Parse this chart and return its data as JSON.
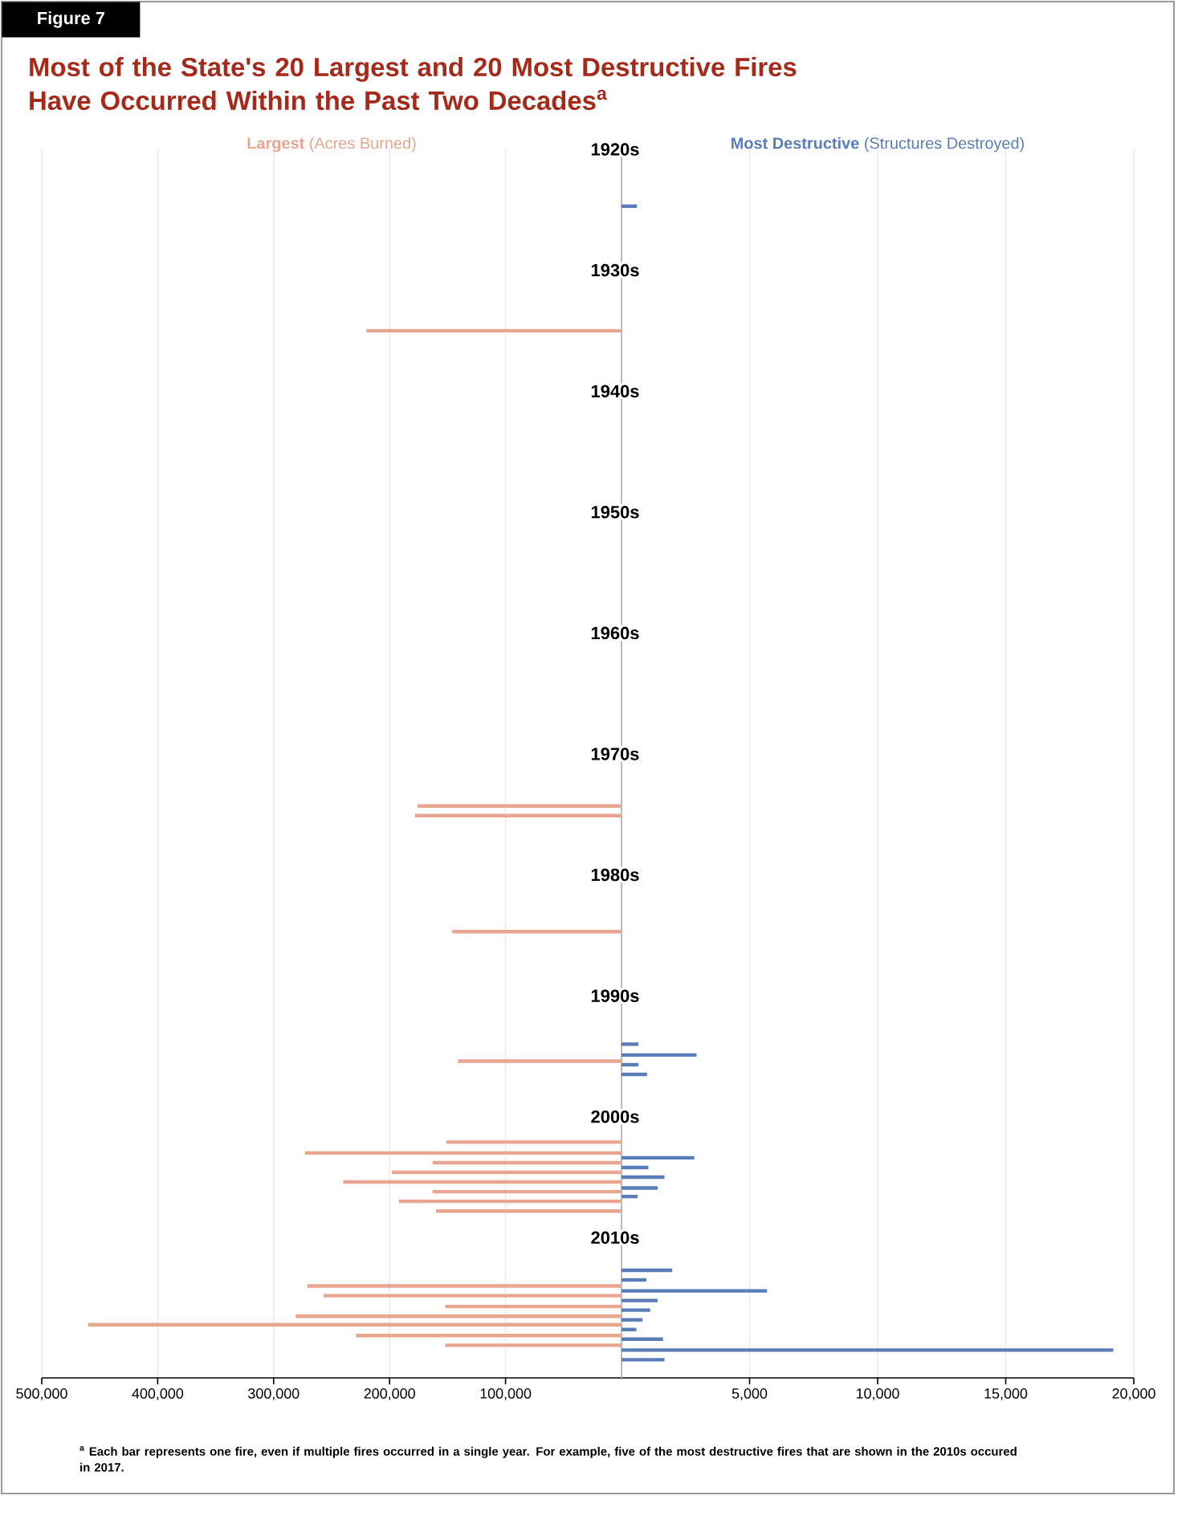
{
  "chart_data": [
    {
      "type": "bar",
      "orientation": "horizontal",
      "title": "Most of the State's 20 Largest and 20 Most Destructive Fires Have Occurred Within the Past Two Decades$^{a}$",
      "subtitle": "**Largest** (Acres Burned)",
      "annotations": [
        "Figure 7",
        "$^{a}$ Each bar represents one fire, even if multiple fires occurred in a single year. For example, five of the most destructive fires that are shown in the 2010s occured in 2017."
      ],
      "x": [
        1935.0,
        1974.3,
        1975.1,
        1984.7,
        1995.4,
        2002.1,
        2003.0,
        2003.8,
        2004.6,
        2005.4,
        2006.2,
        2007.0,
        2007.8,
        2014.0,
        2014.8,
        2015.7,
        2016.5,
        2017.2,
        2018.1,
        2018.9
      ],
      "values": [
        220000,
        176000,
        178000,
        146000,
        141000,
        151000,
        273000,
        163000,
        198000,
        240000,
        163000,
        192000,
        160000,
        271000,
        257000,
        152000,
        281000,
        460000,
        229000,
        152000
      ],
      "color": "#e8a590",
      "xlim": [
        500000,
        0
      ],
      "xticks": [
        {
          "value": 500000,
          "label": "500,000"
        },
        {
          "value": 400000,
          "label": "400,000"
        },
        {
          "value": 300000,
          "label": "300,000"
        },
        {
          "value": 200000,
          "label": "200,000"
        },
        {
          "value": 100000,
          "label": "100,000"
        }
      ],
      "ylim": [
        2021.6,
        1920
      ],
      "grid": "x",
      "tick_labels": "x"
    },
    {
      "type": "bar",
      "orientation": "horizontal",
      "subtitle": "**Most Destructive** (Structures Destroyed)",
      "x": [
        1924.7,
        1994.0,
        1994.9,
        1995.7,
        1996.5,
        2003.4,
        2004.2,
        2005.0,
        2005.9,
        2006.6,
        2012.7,
        2013.5,
        2014.4,
        2015.2,
        2016.0,
        2016.8,
        2017.6,
        2018.4,
        2019.3,
        2020.1
      ],
      "values": [
        600,
        660,
        2930,
        660,
        1000,
        2840,
        1050,
        1680,
        1410,
        630,
        1980,
        970,
        5680,
        1410,
        1120,
        820,
        580,
        1620,
        19200,
        1680
      ],
      "color": "#5a7db8",
      "xlim": [
        0,
        20000
      ],
      "xticks": [
        {
          "value": 5000,
          "label": "5,000"
        },
        {
          "value": 10000,
          "label": "10,000"
        },
        {
          "value": 15000,
          "label": "15,000"
        },
        {
          "value": 20000,
          "label": "20,000"
        }
      ],
      "ylim": [
        2021.6,
        1920
      ],
      "yticks": [
        {
          "value": 1920,
          "label": "1920s"
        },
        {
          "value": 1930,
          "label": "1930s"
        },
        {
          "value": 1940,
          "label": "1940s"
        },
        {
          "value": 1950,
          "label": "1950s"
        },
        {
          "value": 1960,
          "label": "1960s"
        },
        {
          "value": 1970,
          "label": "1970s"
        },
        {
          "value": 1980,
          "label": "1980s"
        },
        {
          "value": 1990,
          "label": "1990s"
        },
        {
          "value": 2000,
          "label": "2000s"
        },
        {
          "value": 2010,
          "label": "2010s"
        }
      ],
      "grid": "x"
    }
  ]
}
